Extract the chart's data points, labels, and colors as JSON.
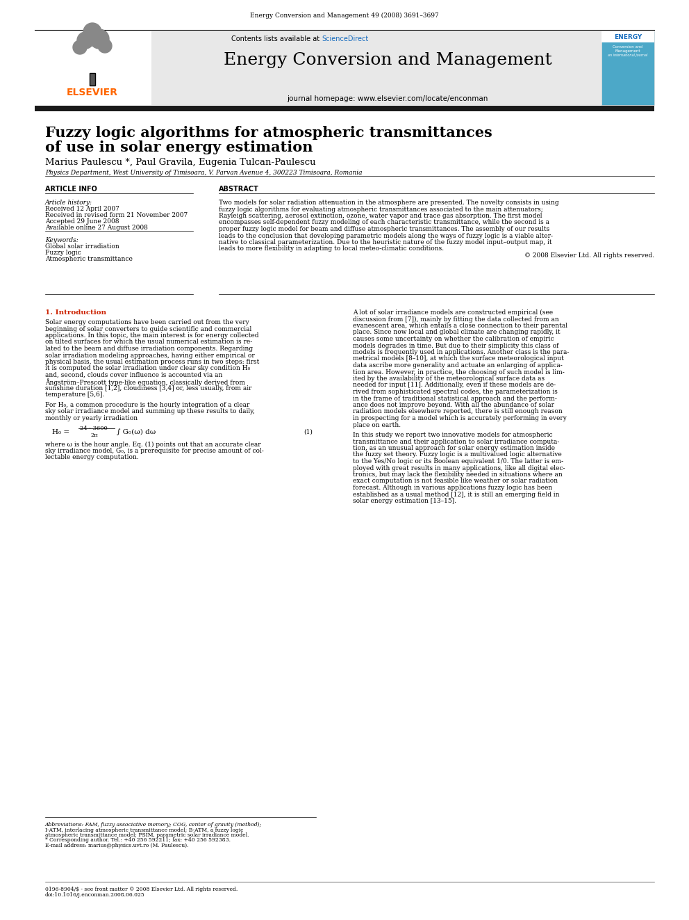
{
  "journal_citation": "Energy Conversion and Management 49 (2008) 3691–3697",
  "contents_line": "Contents lists available at ",
  "sciencedirect": "ScienceDirect",
  "journal_title": "Energy Conversion and Management",
  "journal_homepage": "journal homepage: www.elsevier.com/locate/enconman",
  "paper_title_line1": "Fuzzy logic algorithms for atmospheric transmittances",
  "paper_title_line2": "of use in solar energy estimation",
  "authors": "Marius Paulescu *, Paul Gravila, Eugenia Tulcan-Paulescu",
  "affiliation": "Physics Department, West University of Timisoara, V. Parvan Avenue 4, 300223 Timisoara, Romania",
  "article_info_header": "ARTICLE INFO",
  "abstract_header": "ABSTRACT",
  "article_history_label": "Article history:",
  "received": "Received 12 April 2007",
  "revised": "Received in revised form 21 November 2007",
  "accepted": "Accepted 29 June 2008",
  "available": "Available online 27 August 2008",
  "keywords_label": "Keywords:",
  "keyword1": "Global solar irradiation",
  "keyword2": "Fuzzy logic",
  "keyword3": "Atmospheric transmittance",
  "copyright": "© 2008 Elsevier Ltd. All rights reserved.",
  "section1_header": "1. Introduction",
  "footer_left": "0196-8904/$ - see front matter © 2008 Elsevier Ltd. All rights reserved.",
  "footer_doi": "doi:10.1016/j.enconman.2008.06.025",
  "elsevier_color": "#FF6600",
  "sciencedirect_color": "#1A6EBF",
  "header_bg_color": "#E8E8E8",
  "thick_bar_color": "#1A1A1A",
  "background_color": "#FFFFFF",
  "intro_section_color": "#CC2200",
  "abstract_lines": [
    "Two models for solar radiation attenuation in the atmosphere are presented. The novelty consists in using",
    "fuzzy logic algorithms for evaluating atmospheric transmittances associated to the main attenuators;",
    "Rayleigh scattering, aerosol extinction, ozone, water vapor and trace gas absorption. The first model",
    "encompasses self-dependent fuzzy modeling of each characteristic transmittance, while the second is a",
    "proper fuzzy logic model for beam and diffuse atmospheric transmittances. The assembly of our results",
    "leads to the conclusion that developing parametric models along the ways of fuzzy logic is a viable alter-",
    "native to classical parameterization. Due to the heuristic nature of the fuzzy model input–output map, it",
    "leads to more flexibility in adapting to local meteo-climatic conditions."
  ],
  "intro_lines1": [
    "Solar energy computations have been carried out from the very",
    "beginning of solar converters to guide scientific and commercial",
    "applications. In this topic, the main interest is for energy collected",
    "on tilted surfaces for which the usual numerical estimation is re-",
    "lated to the beam and diffuse irradiation components. Regarding",
    "solar irradiation modeling approaches, having either empirical or",
    "physical basis, the usual estimation process runs in two steps: first",
    "it is computed the solar irradiation under clear sky condition H₀",
    "and, second, clouds cover influence is accounted via an",
    "Ångström–Prescott type-like equation, classically derived from",
    "sunshine duration [1,2], cloudiness [3,4] or, less usually, from air",
    "temperature [5,6]."
  ],
  "intro_lines2": [
    "For H₀, a common procedure is the hourly integration of a clear",
    "sky solar irradiance model and summing up these results to daily,",
    "monthly or yearly irradiation"
  ],
  "intro_lines3": [
    "where ω is the hour angle. Eq. (1) points out that an accurate clear",
    "sky irradiance model, G₀, is a prerequisite for precise amount of col-",
    "lectable energy computation."
  ],
  "right_lines1": [
    "A lot of solar irradiance models are constructed empirical (see",
    "discussion from [7]), mainly by fitting the data collected from an",
    "evanescent area, which entails a close connection to their parental",
    "place. Since now local and global climate are changing rapidly, it",
    "causes some uncertainty on whether the calibration of empiric",
    "models degrades in time. But due to their simplicity this class of",
    "models is frequently used in applications. Another class is the para-",
    "metrical models [8–10], at which the surface meteorological input",
    "data ascribe more generality and actuate an enlarging of applica-",
    "tion area. However, in practice, the choosing of such model is lim-",
    "ited by the availability of the meteorological surface data as",
    "needed for input [11]. Additionally, even if these models are de-",
    "rived from sophisticated spectral codes, the parameterization is",
    "in the frame of traditional statistical approach and the perform-",
    "ance does not improve beyond. With all the abundance of solar",
    "radiation models elsewhere reported, there is still enough reason",
    "in prospecting for a model which is accurately performing in every",
    "place on earth."
  ],
  "right_lines2": [
    "In this study we report two innovative models for atmospheric",
    "transmittance and their application to solar irradiance computa-",
    "tion, as an unusual approach for solar energy estimation inside",
    "the fuzzy set theory. Fuzzy logic is a multivalued logic alternative",
    "to the Yes/No logic or its Boolean equivalent 1/0. The latter is em-",
    "ployed with great results in many applications, like all digital elec-",
    "tronics, but may lack the flexibility needed in situations where an",
    "exact computation is not feasible like weather or solar radiation",
    "forecast. Although in various applications fuzzy logic has been",
    "established as a usual method [12], it is still an emerging field in",
    "solar energy estimation [13–15]."
  ],
  "footnote_lines": [
    "Abbreviations: FAM, fuzzy associative memory; COG, center of gravity (method);",
    "I-ATM, interlacing atmospheric transmittance model; B-ATM, a fuzzy logic",
    "atmospheric transmittance model; PSIM, parametric solar irradiance model.",
    "* Corresponding author. Tel.: +40 256 592211; fax: +40 256 592383.",
    "E-mail address: marius@physics.uvt.ro (M. Paulescu)."
  ]
}
